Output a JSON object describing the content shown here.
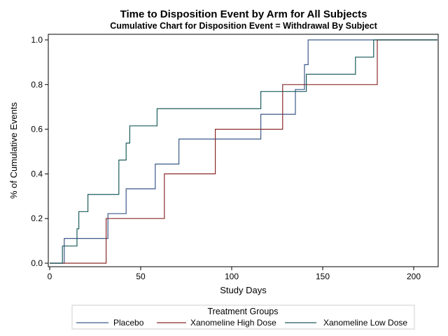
{
  "chart_data": {
    "type": "line",
    "step": true,
    "title": "Time to Disposition Event by Arm for All Subjects",
    "subtitle": "Cumulative Chart for Disposition Event = Withdrawal By Subject",
    "xlabel": "Study Days",
    "ylabel": "% of Cumulative Events",
    "xlim": [
      0,
      215
    ],
    "ylim": [
      0,
      1.0
    ],
    "xticks": [
      0,
      50,
      100,
      150,
      200
    ],
    "yticks": [
      0.0,
      0.2,
      0.4,
      0.6,
      0.8,
      1.0
    ],
    "xtick_labels": [
      "0",
      "50",
      "100",
      "150",
      "200"
    ],
    "ytick_labels": [
      "0.0",
      "0.2",
      "0.4",
      "0.6",
      "0.8",
      "1.0"
    ],
    "legend": {
      "title": "Treatment Groups",
      "placement": "bottom"
    },
    "series": [
      {
        "name": "Placebo",
        "color": "#3c5a8a",
        "x": [
          0,
          8,
          32,
          42,
          58,
          71,
          116,
          135,
          140,
          142,
          180,
          213
        ],
        "y": [
          0,
          0.111,
          0.222,
          0.333,
          0.444,
          0.556,
          0.667,
          0.778,
          0.889,
          1.0,
          1.0,
          1.0
        ]
      },
      {
        "name": "Xanomeline High Dose",
        "color": "#8c2a2a",
        "x": [
          0,
          31,
          63,
          91,
          128,
          180,
          213
        ],
        "y": [
          0,
          0.2,
          0.4,
          0.6,
          0.8,
          1.0,
          1.0
        ]
      },
      {
        "name": "Xanomeline Low Dose",
        "color": "#1c5c5c",
        "x": [
          0,
          7,
          15,
          16,
          21,
          38,
          42,
          44,
          59,
          116,
          141,
          168,
          178,
          213
        ],
        "y": [
          0,
          0.077,
          0.154,
          0.231,
          0.308,
          0.462,
          0.538,
          0.615,
          0.692,
          0.769,
          0.846,
          0.923,
          1.0,
          1.0
        ]
      }
    ]
  }
}
